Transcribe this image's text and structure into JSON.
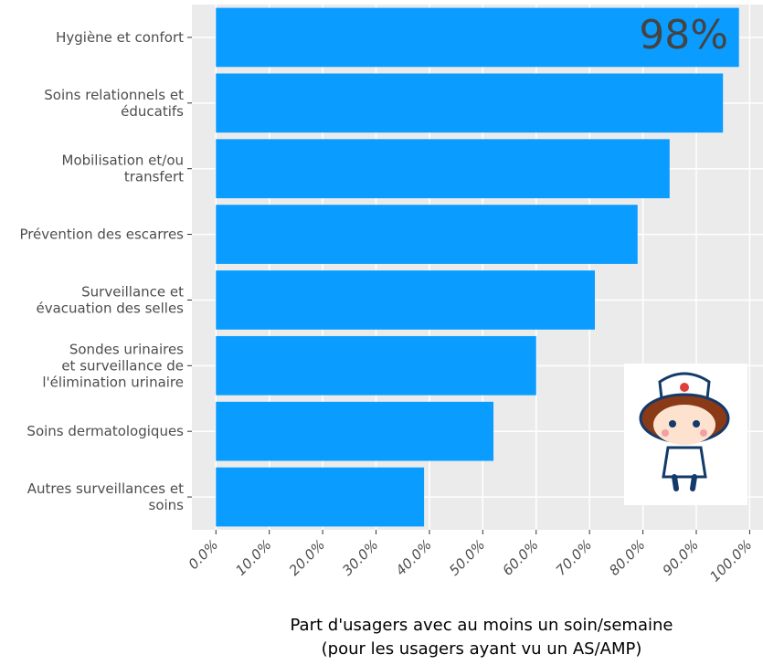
{
  "chart_data": {
    "type": "barh",
    "categories": [
      "Hygiène et confort",
      "Soins relationnels et\néducatifs",
      "Mobilisation et/ou\ntransfert",
      "Prévention des escarres",
      "Surveillance et\névacuation des selles",
      "Sondes urinaires\net surveillance de\nl'élimination urinaire",
      "Soins dermatologiques",
      "Autres surveillances et\nsoins"
    ],
    "values": [
      98,
      95,
      85,
      79,
      71,
      60,
      52,
      39
    ],
    "color": "#0a9cff",
    "annotation": "98%",
    "x_label": [
      "Part d'usagers avec au moins un soin/semaine",
      "(pour les usagers ayant vu un AS/AMP)"
    ],
    "xlim": [
      -4.5,
      102.5
    ],
    "xticks": [
      {
        "value": 0,
        "label": "0.0%"
      },
      {
        "value": 10,
        "label": "10.0%"
      },
      {
        "value": 20,
        "label": "20.0%"
      },
      {
        "value": 30,
        "label": "30.0%"
      },
      {
        "value": 40,
        "label": "40.0%"
      },
      {
        "value": 50,
        "label": "50.0%"
      },
      {
        "value": 60,
        "label": "60.0%"
      },
      {
        "value": 70,
        "label": "70.0%"
      },
      {
        "value": 80,
        "label": "80.0%"
      },
      {
        "value": 90,
        "label": "90.0%"
      },
      {
        "value": 100,
        "label": "100.0%"
      }
    ],
    "grid": true
  }
}
